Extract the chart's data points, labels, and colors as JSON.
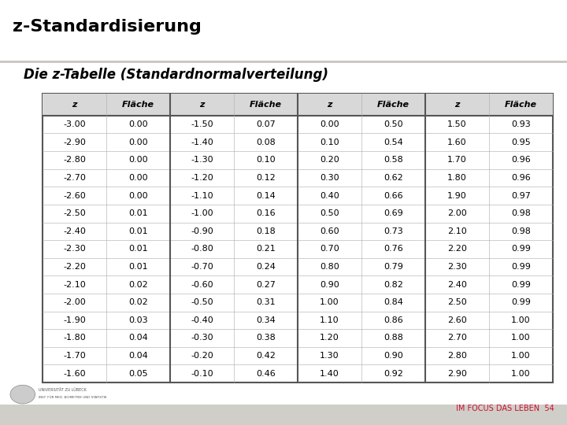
{
  "title": "z-Standardisierung",
  "subtitle": "Die z-Tabelle (Standardnormalverteilung)",
  "header": [
    "z",
    "Fläche",
    "z",
    "Fläche",
    "z",
    "Fläche",
    "z",
    "Fläche"
  ],
  "col1": [
    "-3.00",
    "-2.90",
    "-2.80",
    "-2.70",
    "-2.60",
    "-2.50",
    "-2.40",
    "-2.30",
    "-2.20",
    "-2.10",
    "-2.00",
    "-1.90",
    "-1.80",
    "-1.70",
    "-1.60"
  ],
  "col2": [
    "0.00",
    "0.00",
    "0.00",
    "0.00",
    "0.00",
    "0.01",
    "0.01",
    "0.01",
    "0.01",
    "0.02",
    "0.02",
    "0.03",
    "0.04",
    "0.04",
    "0.05"
  ],
  "col3": [
    "-1.50",
    "-1.40",
    "-1.30",
    "-1.20",
    "-1.10",
    "-1.00",
    "-0.90",
    "-0.80",
    "-0.70",
    "-0.60",
    "-0.50",
    "-0.40",
    "-0.30",
    "-0.20",
    "-0.10"
  ],
  "col4": [
    "0.07",
    "0.08",
    "0.10",
    "0.12",
    "0.14",
    "0.16",
    "0.18",
    "0.21",
    "0.24",
    "0.27",
    "0.31",
    "0.34",
    "0.38",
    "0.42",
    "0.46"
  ],
  "col5": [
    "0.00",
    "0.10",
    "0.20",
    "0.30",
    "0.40",
    "0.50",
    "0.60",
    "0.70",
    "0.80",
    "0.90",
    "1.00",
    "1.10",
    "1.20",
    "1.30",
    "1.40"
  ],
  "col6": [
    "0.50",
    "0.54",
    "0.58",
    "0.62",
    "0.66",
    "0.69",
    "0.73",
    "0.76",
    "0.79",
    "0.82",
    "0.84",
    "0.86",
    "0.88",
    "0.90",
    "0.92"
  ],
  "col7": [
    "1.50",
    "1.60",
    "1.70",
    "1.80",
    "1.90",
    "2.00",
    "2.10",
    "2.20",
    "2.30",
    "2.40",
    "2.50",
    "2.60",
    "2.70",
    "2.80",
    "2.90"
  ],
  "col8": [
    "0.93",
    "0.95",
    "0.96",
    "0.96",
    "0.97",
    "0.98",
    "0.98",
    "0.99",
    "0.99",
    "0.99",
    "0.99",
    "1.00",
    "1.00",
    "1.00",
    "1.00"
  ],
  "bg_color": "#ffffff",
  "title_color": "#000000",
  "subtitle_color": "#000000",
  "header_bg": "#d8d8d8",
  "table_border_color": "#555555",
  "separator_color": "#555555",
  "row_line_color": "#aaaaaa",
  "footer_text": "IM FOCUS DAS LEBEN",
  "footer_color": "#c8102e",
  "page_number": "54",
  "bottom_bar_color": "#d0cec8",
  "title_fontsize": 16,
  "subtitle_fontsize": 12,
  "header_fontsize": 8,
  "data_fontsize": 8
}
